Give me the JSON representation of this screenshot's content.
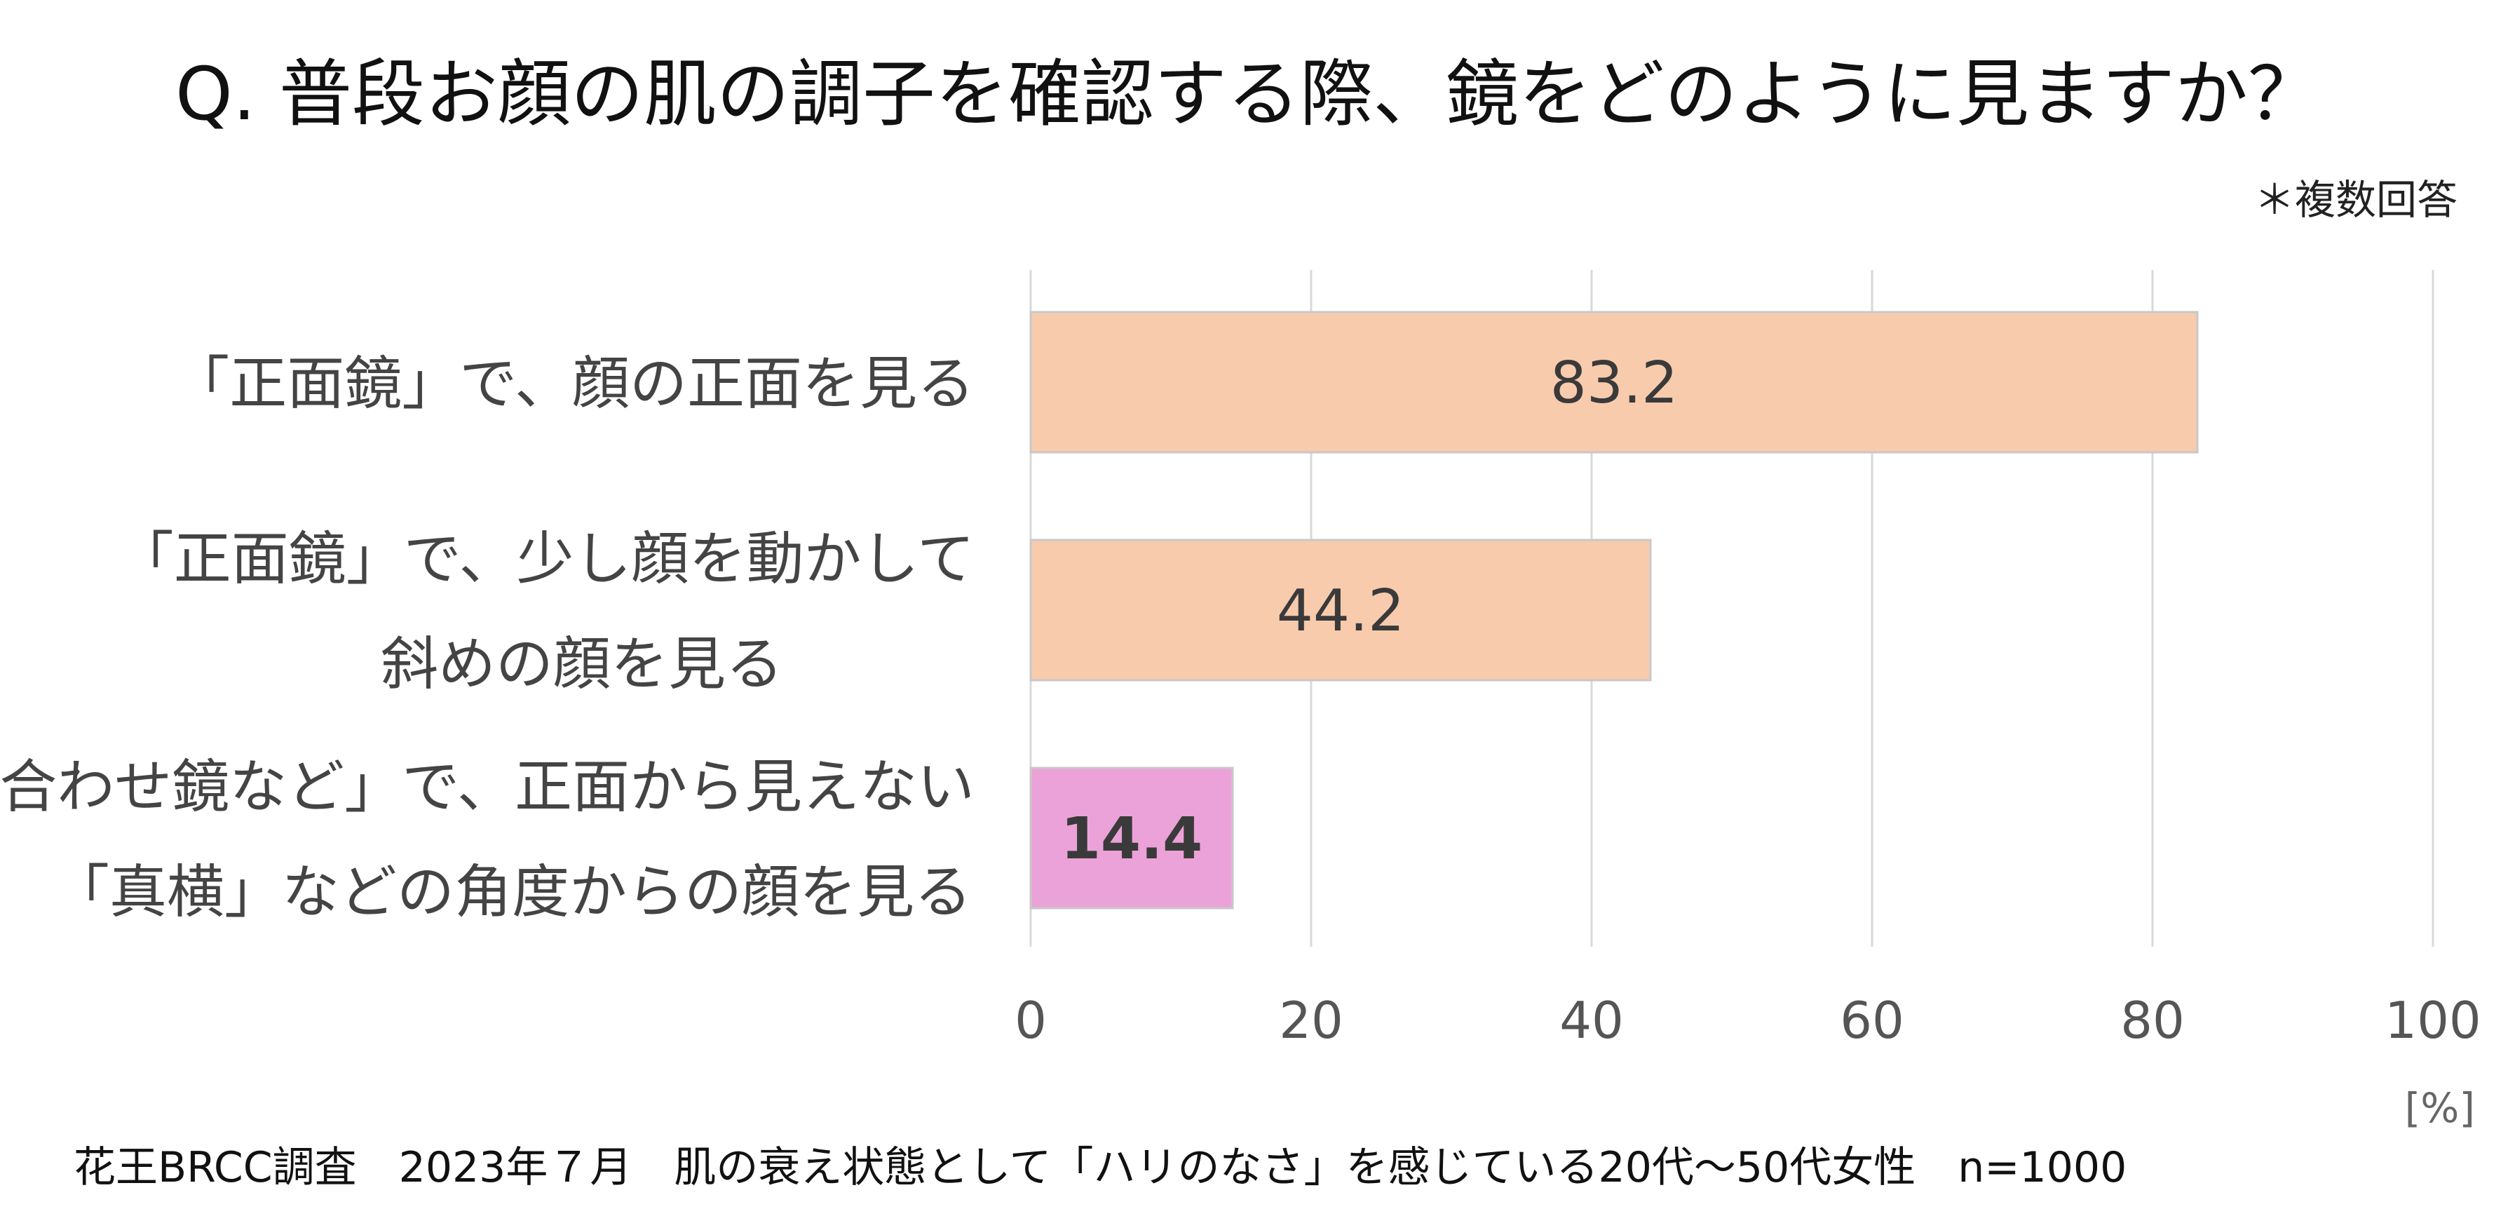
{
  "chart_data": {
    "type": "bar",
    "orientation": "horizontal",
    "title": "Q. 普段お顔の肌の調子を確認する際、鏡をどのように見ますか？",
    "note": "＊複数回答",
    "categories": [
      [
        "「正面鏡」で、顔の正面を見る"
      ],
      [
        "「正面鏡」で、少し顔を動かして",
        "斜めの顔を見る"
      ],
      [
        "「合わせ鏡など」で、正面から見えない",
        "「真横」などの角度からの顔を見る"
      ]
    ],
    "values": [
      83.2,
      44.2,
      14.4
    ],
    "value_labels": [
      "83.2",
      "44.2",
      "14.4"
    ],
    "colors": [
      "#f8cbad",
      "#f8cbad",
      "#eba2d8"
    ],
    "xlim": [
      0,
      100
    ],
    "xticks": [
      0,
      20,
      40,
      60,
      80,
      100
    ],
    "xunit": "[%]",
    "grid": true,
    "source": "花王BRCC調査　2023年７月　肌の衰え状態として「ハリのなさ」を感じている20代〜50代女性　n=1000"
  }
}
